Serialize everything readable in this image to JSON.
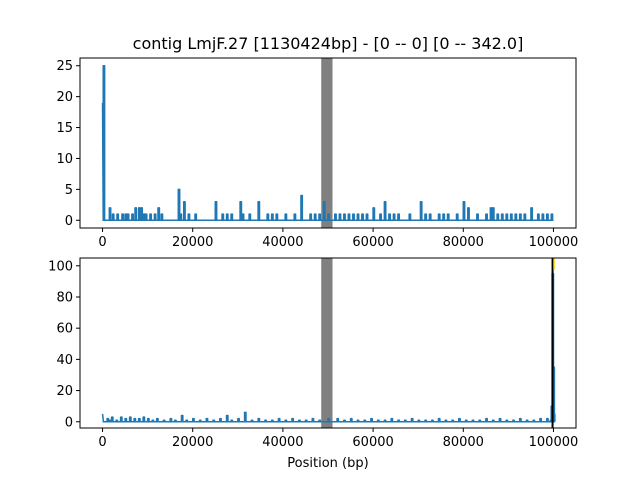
{
  "chart_data": [
    {
      "type": "line",
      "title": "contig LmjF.27 [1130424bp] - [0 -- 0] [0 -- 342.0]",
      "xlabel": "",
      "ylabel": "",
      "xlim": [
        -5000,
        105000
      ],
      "ylim": [
        -1.25,
        26.25
      ],
      "x_ticks": [
        0,
        20000,
        40000,
        60000,
        80000,
        100000
      ],
      "x_tick_labels": [
        "0",
        "20000",
        "40000",
        "60000",
        "80000",
        "100000"
      ],
      "y_ticks": [
        0,
        5,
        10,
        15,
        20,
        25
      ],
      "y_tick_labels": [
        "0",
        "5",
        "10",
        "15",
        "20",
        "25"
      ],
      "grid": false,
      "line_color": "#1f77b4",
      "shaded_region": {
        "x": [
          48500,
          51000
        ],
        "color": "#808080"
      },
      "series": [
        {
          "x": [
            0,
            150,
            300,
            1500,
            2200,
            3200,
            4300,
            5000,
            5500,
            6500,
            7200,
            8000,
            8500,
            9000,
            9500,
            10500,
            11500,
            12300,
            13000,
            16800,
            17200,
            18000,
            19000,
            20500,
            25000,
            26500,
            27500,
            28500,
            30500,
            31000,
            32500,
            34500,
            36500,
            37500,
            38500,
            40500,
            42500,
            44000,
            46000,
            47000,
            48000,
            49000,
            50000,
            51500,
            52500,
            53500,
            54500,
            55500,
            56500,
            57500,
            58500,
            60000,
            61500,
            62500,
            63500,
            64500,
            65500,
            68000,
            70500,
            71500,
            72500,
            74500,
            75500,
            76500,
            78500,
            80000,
            81000,
            83000,
            85000,
            86000,
            86500,
            87500,
            88500,
            89500,
            90500,
            91500,
            92500,
            93500,
            95000,
            96500,
            97500,
            98500,
            99500
          ],
          "values": [
            19,
            25,
            0,
            2,
            1,
            1,
            1,
            1,
            1,
            1,
            2,
            2,
            2,
            1,
            1,
            1,
            1,
            2,
            1,
            5,
            1,
            3,
            1,
            1,
            3,
            1,
            1,
            1,
            3,
            1,
            1,
            3,
            1,
            1,
            1,
            1,
            1,
            4,
            1,
            1,
            1,
            3,
            1,
            1,
            1,
            1,
            1,
            1,
            1,
            1,
            1,
            2,
            1,
            3,
            1,
            1,
            1,
            1,
            3,
            1,
            1,
            1,
            1,
            1,
            1,
            3,
            2,
            1,
            1,
            2,
            2,
            1,
            1,
            1,
            1,
            1,
            1,
            1,
            2,
            1,
            1,
            1,
            1
          ]
        }
      ]
    },
    {
      "type": "line",
      "title": "",
      "xlabel": "Position (bp)",
      "ylabel": "",
      "xlim": [
        -5000,
        105000
      ],
      "ylim": [
        -4,
        105
      ],
      "x_ticks": [
        0,
        20000,
        40000,
        60000,
        80000,
        100000
      ],
      "x_tick_labels": [
        "0",
        "20000",
        "40000",
        "60000",
        "80000",
        "100000"
      ],
      "y_ticks": [
        0,
        20,
        40,
        60,
        80,
        100
      ],
      "y_tick_labels": [
        "0",
        "20",
        "40",
        "60",
        "80",
        "100"
      ],
      "grid": false,
      "line_color": "#1f77b4",
      "shaded_region": {
        "x": [
          48500,
          51000
        ],
        "color": "#808080"
      },
      "end_markers": {
        "x": 99800,
        "y_top": 105,
        "colors": [
          "#000000",
          "#ffd700"
        ]
      },
      "series": [
        {
          "x": [
            0,
            200,
            1000,
            1500,
            2000,
            3000,
            4000,
            5000,
            6000,
            7000,
            8000,
            9000,
            10000,
            11000,
            12000,
            13500,
            15000,
            16000,
            17500,
            18500,
            20000,
            21500,
            23000,
            24500,
            26000,
            27500,
            28500,
            30000,
            31500,
            33000,
            34500,
            36000,
            37500,
            39000,
            40500,
            42000,
            43500,
            45000,
            46500,
            48000,
            50000,
            52000,
            53500,
            55000,
            56500,
            58000,
            59500,
            61000,
            62500,
            64000,
            65500,
            67000,
            68500,
            70000,
            71500,
            73000,
            74500,
            76000,
            77500,
            79000,
            80500,
            82000,
            83500,
            85000,
            86500,
            88000,
            89500,
            91000,
            92500,
            94000,
            95500,
            97000,
            98500,
            99300,
            99500,
            99700,
            99900,
            100000
          ],
          "values": [
            5,
            0,
            2,
            1,
            3,
            1,
            3,
            2,
            3,
            2,
            2,
            3,
            2,
            1,
            2,
            1,
            2,
            1,
            4,
            1,
            2,
            1,
            2,
            1,
            2,
            4,
            1,
            2,
            6,
            1,
            2,
            1,
            1,
            2,
            1,
            2,
            1,
            1,
            2,
            1,
            2,
            2,
            1,
            2,
            1,
            1,
            2,
            1,
            1,
            2,
            1,
            1,
            2,
            1,
            1,
            1,
            2,
            1,
            1,
            2,
            1,
            1,
            1,
            2,
            1,
            2,
            1,
            1,
            2,
            1,
            1,
            2,
            2,
            1,
            10,
            95,
            35,
            5
          ]
        }
      ]
    }
  ]
}
